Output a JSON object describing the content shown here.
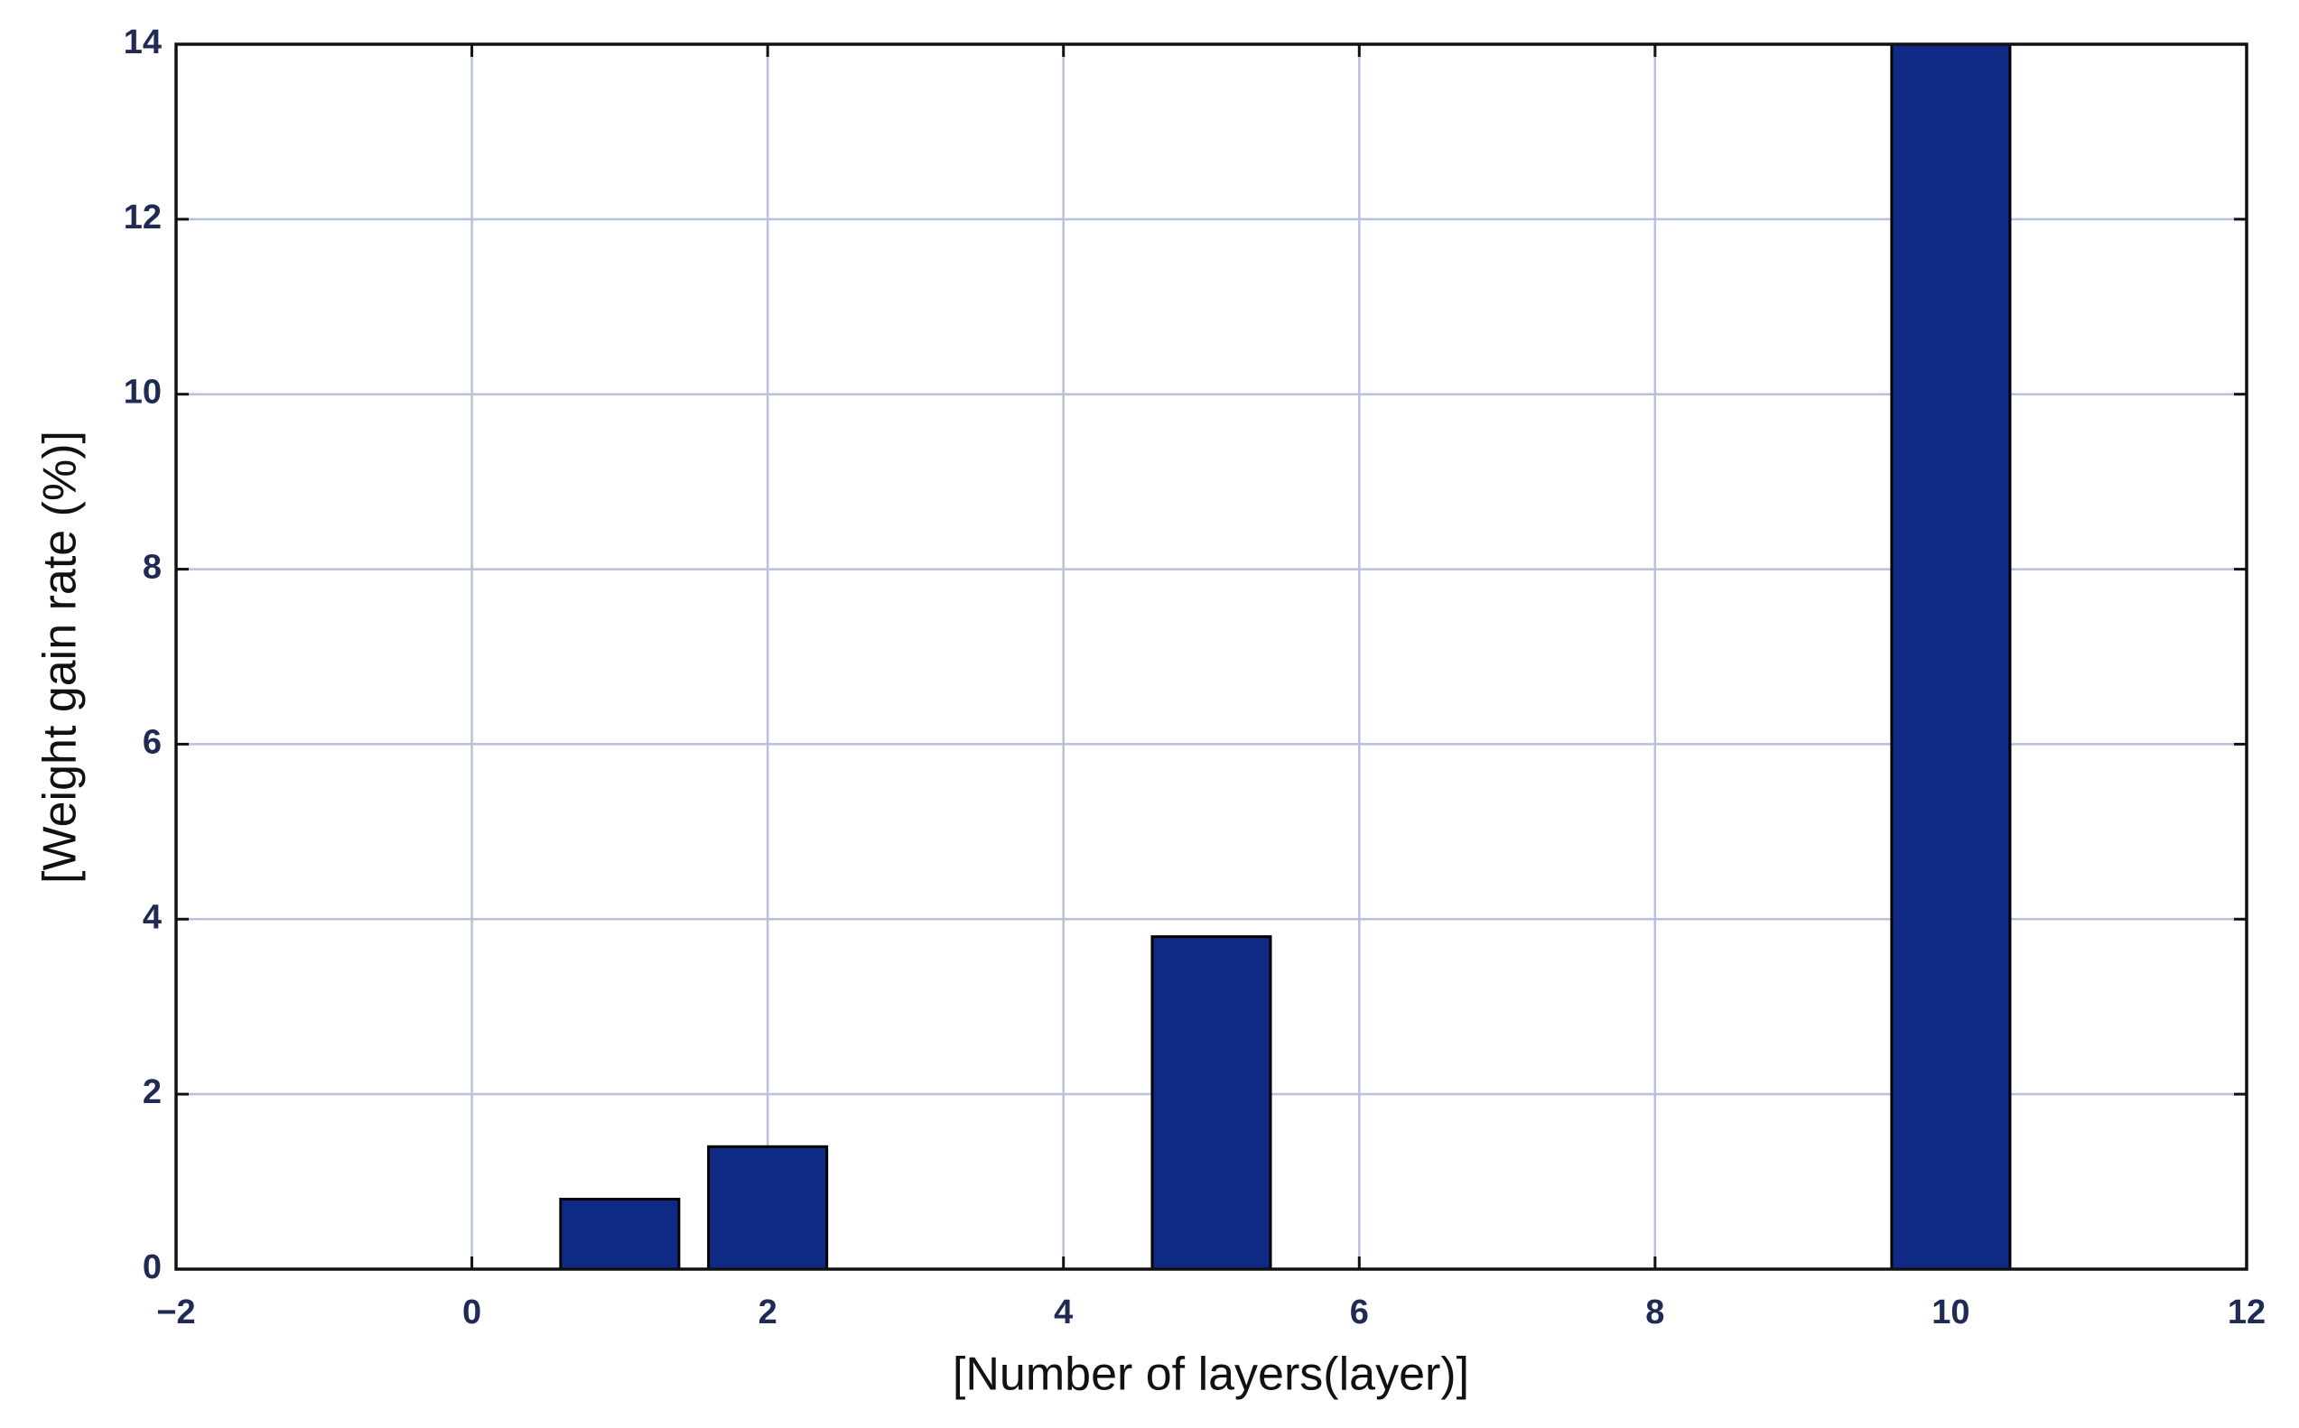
{
  "chart_data": {
    "type": "bar",
    "x": [
      1,
      2,
      5,
      10
    ],
    "values": [
      0.8,
      1.4,
      3.8,
      14
    ],
    "color": "#0f2a85",
    "xlabel": "[Number of layers(layer)]",
    "ylabel": "[Weight gain rate (%)]",
    "xlim": [
      -2,
      12
    ],
    "xticks": [
      {
        "value": -2,
        "label": "−2"
      },
      0,
      2,
      4,
      6,
      8,
      10,
      12
    ],
    "ylim": [
      0,
      14
    ],
    "yticks": [
      0,
      2,
      4,
      6,
      8,
      10,
      12,
      14
    ],
    "grid": true
  }
}
